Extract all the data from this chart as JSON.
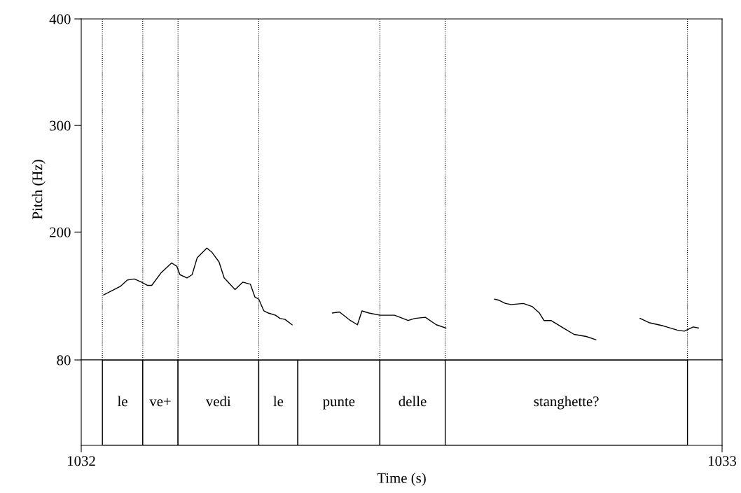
{
  "chart_data": [
    {
      "type": "line",
      "ylabel": "Pitch (Hz)",
      "xlim": [
        1032,
        1033
      ],
      "ylim": [
        80,
        400
      ],
      "yticks": [
        80,
        200,
        300,
        400
      ],
      "tick_labels": "y",
      "grid": false,
      "legend": false,
      "marker": "none",
      "line_style": "solid",
      "series": [
        {
          "color": "#000000",
          "x": [
            1032.035,
            1032.051,
            1032.061,
            1032.072,
            1032.083,
            1032.094,
            1032.103,
            1032.11,
            1032.125,
            1032.141,
            1032.149,
            1032.154,
            1032.165,
            1032.173,
            1032.181,
            1032.196,
            1032.204,
            1032.215,
            1032.223,
            1032.24,
            1032.252,
            1032.264,
            1032.271,
            1032.277,
            1032.285,
            1032.292,
            1032.303,
            1032.31,
            1032.318,
            1032.329,
            1032.36,
            1032.392,
            1032.403,
            1032.42,
            1032.431,
            1032.438,
            1032.449,
            1032.466,
            1032.489,
            1032.51,
            1032.521,
            1032.537,
            1032.554,
            1032.569,
            1032.6,
            1032.645,
            1032.652,
            1032.662,
            1032.671,
            1032.69,
            1032.704,
            1032.715,
            1032.722,
            1032.733,
            1032.755,
            1032.769,
            1032.788,
            1032.803,
            1032.84,
            1032.872,
            1032.886,
            1032.908,
            1032.93,
            1032.941,
            1032.955,
            1032.963
          ],
          "values": [
            141,
            146,
            149,
            155,
            156,
            153,
            150,
            150,
            162,
            171,
            168,
            160,
            157,
            160,
            176,
            185,
            181,
            172,
            157,
            146,
            153,
            151,
            139,
            137,
            126,
            124,
            122,
            119,
            118,
            113,
            null,
            124,
            125,
            117,
            113,
            126,
            124,
            122,
            122,
            117,
            119,
            120,
            113,
            110,
            null,
            137,
            136,
            133,
            132,
            133,
            130,
            124,
            117,
            117,
            109,
            104,
            102,
            99,
            null,
            119,
            115,
            112,
            108,
            107,
            111,
            110
          ]
        }
      ],
      "ref_lines": [
        {
          "axis": "x",
          "value": 1032.033,
          "color": "#000000",
          "line_style": "dotted"
        },
        {
          "axis": "x",
          "value": 1032.096,
          "color": "#000000",
          "line_style": "dotted"
        },
        {
          "axis": "x",
          "value": 1032.151,
          "color": "#000000",
          "line_style": "dotted"
        },
        {
          "axis": "x",
          "value": 1032.277,
          "color": "#000000",
          "line_style": "dotted"
        },
        {
          "axis": "x",
          "value": 1032.466,
          "color": "#000000",
          "line_style": "dotted"
        },
        {
          "axis": "x",
          "value": 1032.568,
          "color": "#000000",
          "line_style": "dotted"
        },
        {
          "axis": "x",
          "value": 1032.946,
          "color": "#000000",
          "line_style": "dotted"
        }
      ]
    },
    {
      "type": "bar",
      "orientation": "horizontal",
      "xlabel": "Time (s)",
      "xlim": [
        1032,
        1033
      ],
      "xticks": [
        1032,
        1033
      ],
      "tick_labels": "x",
      "categories": [
        null
      ],
      "grid": false,
      "legend": false,
      "series": [
        {
          "name": "le",
          "color": "#ffffff",
          "base": [
            1032.033
          ],
          "values": [
            0.063
          ]
        },
        {
          "name": "ve+",
          "color": "#ffffff",
          "base": [
            1032.096
          ],
          "values": [
            0.055
          ]
        },
        {
          "name": "vedi",
          "color": "#ffffff",
          "base": [
            1032.151
          ],
          "values": [
            0.126
          ]
        },
        {
          "name": "le",
          "color": "#ffffff",
          "base": [
            1032.277
          ],
          "values": [
            0.061
          ]
        },
        {
          "name": "punte",
          "color": "#ffffff",
          "base": [
            1032.338
          ],
          "values": [
            0.128
          ]
        },
        {
          "name": "delle",
          "color": "#ffffff",
          "base": [
            1032.466
          ],
          "values": [
            0.102
          ]
        },
        {
          "name": "stanghette?",
          "color": "#ffffff",
          "base": [
            1032.568
          ],
          "values": [
            0.378
          ]
        }
      ]
    }
  ]
}
